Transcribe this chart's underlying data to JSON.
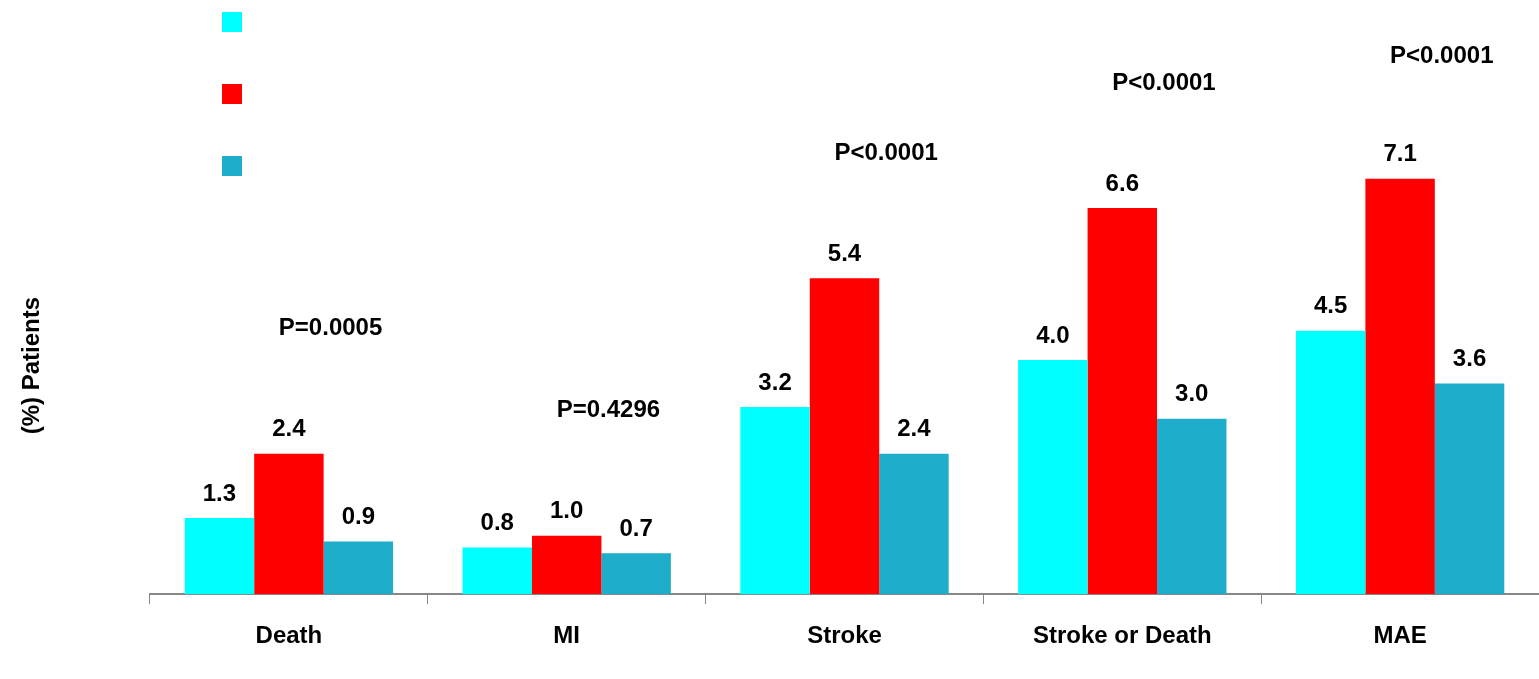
{
  "chart_data": {
    "type": "bar",
    "ylabel": "(%) Patients",
    "categories": [
      "Death",
      "MI",
      "Stroke",
      "Stroke or Death",
      "MAE"
    ],
    "series": [
      {
        "color": "#00ffff",
        "values": [
          1.3,
          0.8,
          3.2,
          4.0,
          4.5
        ],
        "value_labels": [
          "1.3",
          "0.8",
          "3.2",
          "4.0",
          "4.5"
        ]
      },
      {
        "color": "#ff0000",
        "values": [
          2.4,
          1.0,
          5.4,
          6.6,
          7.1
        ],
        "value_labels": [
          "2.4",
          "1.0",
          "5.4",
          "6.6",
          "7.1"
        ]
      },
      {
        "color": "#1eaecc",
        "values": [
          0.9,
          0.7,
          2.4,
          3.0,
          3.6
        ],
        "value_labels": [
          "0.9",
          "0.7",
          "2.4",
          "3.0",
          "3.6"
        ]
      }
    ],
    "grid": false,
    "annotations": [
      "P=0.0005",
      "P=0.4296",
      "P<0.0001",
      "P<0.0001",
      "P<0.0001"
    ]
  }
}
